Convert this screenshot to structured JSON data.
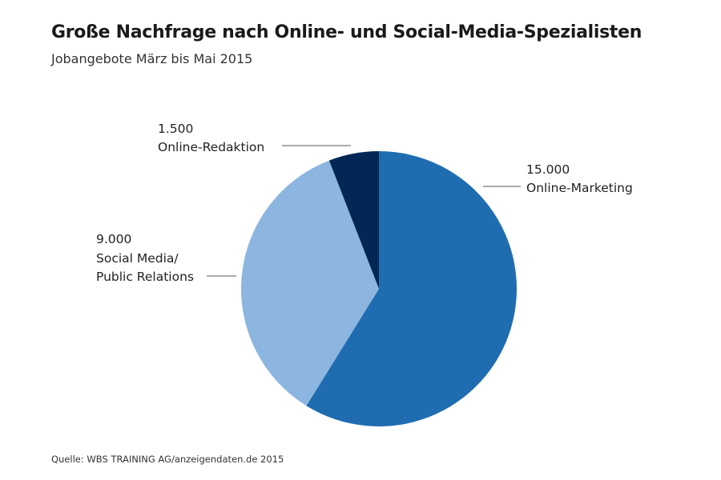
{
  "chart_data": {
    "type": "pie",
    "title": "Große Nachfrage nach Online- und Social-Media-Spezialisten",
    "subtitle": "Jobangebote März bis Mai 2015",
    "source": "Quelle: WBS TRAINING AG/anzeigendaten.de 2015",
    "slices": [
      {
        "label": "Online-Marketing",
        "value": 15000,
        "value_label": "15.000",
        "color": "#1f6db0"
      },
      {
        "label_lines": [
          "Social Media/",
          "Public Relations"
        ],
        "label": "Social Media/ Public Relations",
        "value": 9000,
        "value_label": "9.000",
        "color": "#8cb6df"
      },
      {
        "label": "Online-Redaktion",
        "value": 1500,
        "value_label": "1.500",
        "color": "#032754"
      }
    ]
  }
}
